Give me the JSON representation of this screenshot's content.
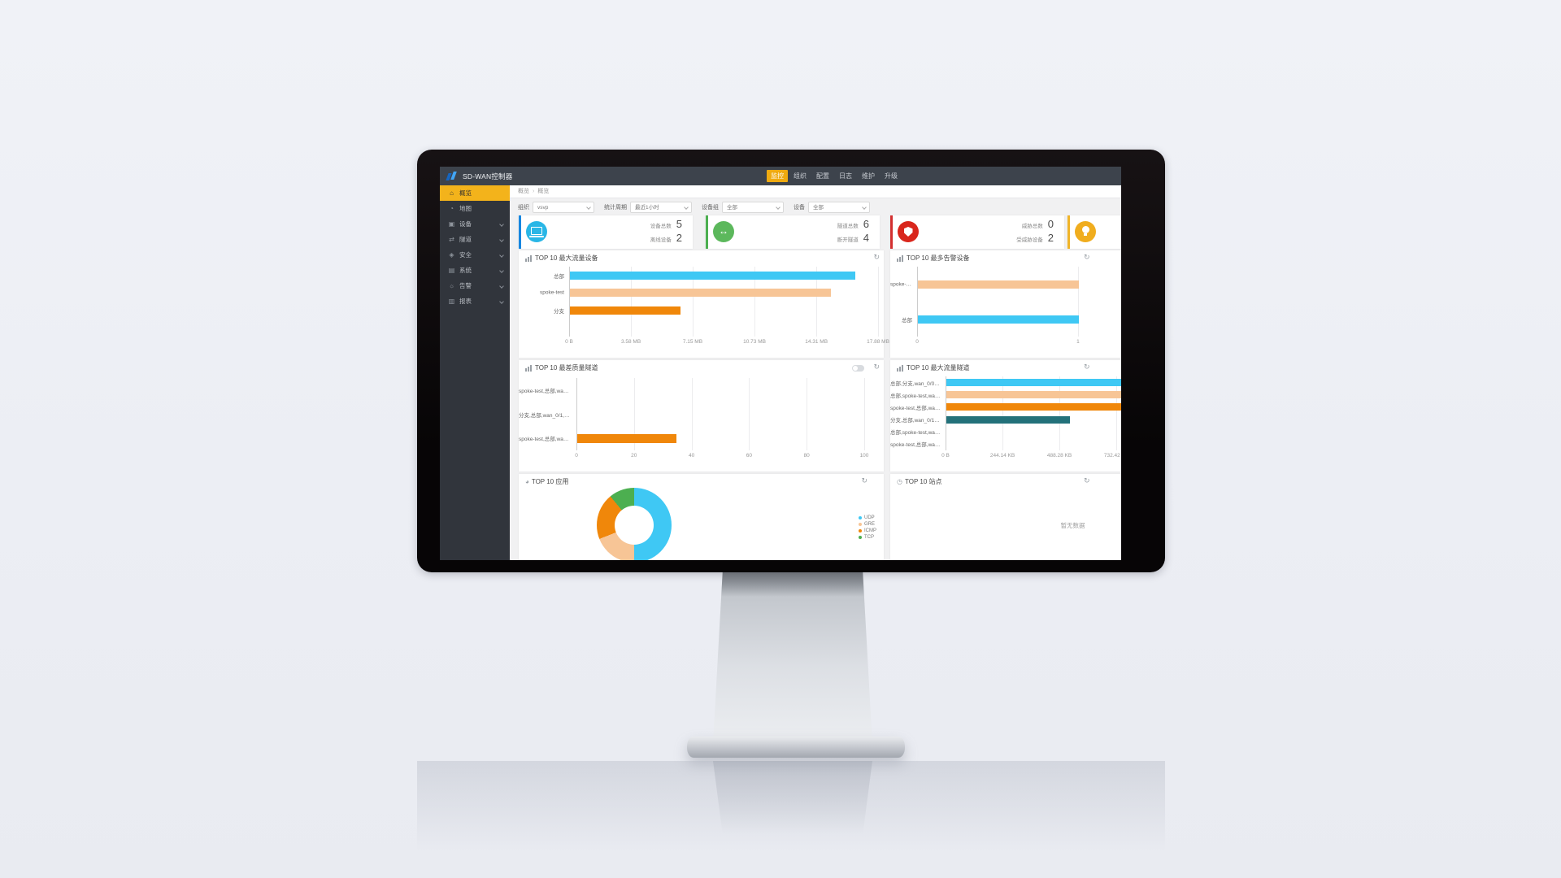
{
  "brand": {
    "title": "SD-WAN控制器"
  },
  "navbar": {
    "items": [
      {
        "name": "monitor",
        "label": "监控",
        "active": true
      },
      {
        "name": "organization",
        "label": "组织",
        "active": false
      },
      {
        "name": "config",
        "label": "配置",
        "active": false
      },
      {
        "name": "logs",
        "label": "日志",
        "active": false
      },
      {
        "name": "maintenance",
        "label": "维护",
        "active": false
      },
      {
        "name": "upgrade",
        "label": "升级",
        "active": false
      }
    ]
  },
  "sidebar": {
    "items": [
      {
        "name": "overview",
        "label": "概览",
        "icon": "dashboard-icon",
        "glyph": "⌂",
        "active": true,
        "expandable": false
      },
      {
        "name": "map",
        "label": "地图",
        "icon": "map-icon",
        "glyph": "◔",
        "active": false,
        "expandable": false
      },
      {
        "name": "devices",
        "label": "设备",
        "icon": "devices-icon",
        "glyph": "▣",
        "active": false,
        "expandable": true
      },
      {
        "name": "tunnels",
        "label": "隧道",
        "icon": "tunnel-icon",
        "glyph": "⇄",
        "active": false,
        "expandable": true
      },
      {
        "name": "security",
        "label": "安全",
        "icon": "shield-icon",
        "glyph": "◈",
        "active": false,
        "expandable": true
      },
      {
        "name": "system",
        "label": "系统",
        "icon": "system-icon",
        "glyph": "▤",
        "active": false,
        "expandable": true
      },
      {
        "name": "alarms",
        "label": "告警",
        "icon": "alarm-bulb-icon",
        "glyph": "☼",
        "active": false,
        "expandable": true
      },
      {
        "name": "reports",
        "label": "报表",
        "icon": "report-icon",
        "glyph": "▥",
        "active": false,
        "expandable": true
      }
    ]
  },
  "breadcrumb": {
    "items": [
      "概览",
      "概览"
    ],
    "separator": "›"
  },
  "filters": [
    {
      "name": "org",
      "label": "组织",
      "value": "vsvp"
    },
    {
      "name": "period",
      "label": "统计周期",
      "value": "最近1小时"
    },
    {
      "name": "device-group",
      "label": "设备组",
      "value": "全部"
    },
    {
      "name": "device",
      "label": "设备",
      "value": "全部"
    }
  ],
  "stat_cards": [
    {
      "name": "devices",
      "icon": "laptop-icon",
      "accent": "#1787e0",
      "circle": "#29b6e6",
      "rows": [
        {
          "label": "设备总数",
          "value": "5"
        },
        {
          "label": "离线设备",
          "value": "2"
        }
      ]
    },
    {
      "name": "tunnels",
      "icon": "tunnel-arrows-icon",
      "accent": "#4caf50",
      "circle": "#5cb85c",
      "rows": [
        {
          "label": "隧道总数",
          "value": "6"
        },
        {
          "label": "断开隧道",
          "value": "4"
        }
      ]
    },
    {
      "name": "threats",
      "icon": "threat-shield-icon",
      "accent": "#d32f2f",
      "circle": "#d9261c",
      "rows": [
        {
          "label": "威胁总数",
          "value": "0"
        },
        {
          "label": "受威胁设备",
          "value": "2"
        }
      ]
    },
    {
      "name": "alarms",
      "icon": "alarm-bulb-icon",
      "accent": "#f0b429",
      "circle": "#f0ad1e",
      "rows": []
    }
  ],
  "chart_data": [
    {
      "id": "chart1",
      "type": "bar",
      "orientation": "horizontal",
      "title": "TOP 10 最大流量设备",
      "header_icon": "bar-chart-icon",
      "unit": "MB",
      "categories": [
        "总部",
        "spoke-test",
        "分支"
      ],
      "values": [
        16.5,
        15.1,
        6.4
      ],
      "colors": [
        "#3fc8f4",
        "#f7c596",
        "#f0870a"
      ],
      "xlim": [
        0,
        17.88
      ],
      "grid": true,
      "ticks": [
        {
          "label": "0 B",
          "v": 0
        },
        {
          "label": "3.58 MB",
          "v": 3.58
        },
        {
          "label": "7.15 MB",
          "v": 7.15
        },
        {
          "label": "10.73 MB",
          "v": 10.73
        },
        {
          "label": "14.31 MB",
          "v": 14.31
        },
        {
          "label": "17.88 MB",
          "v": 17.88
        }
      ]
    },
    {
      "id": "chart2",
      "type": "bar",
      "orientation": "horizontal",
      "title": "TOP 10 最多告警设备",
      "header_icon": "bar-chart-icon",
      "unit": "count",
      "categories": [
        "spoke-test",
        "总部"
      ],
      "values": [
        1,
        1
      ],
      "colors": [
        "#f7c596",
        "#3fc8f4"
      ],
      "xlim": [
        0,
        1.92
      ],
      "grid": true,
      "ticks": [
        {
          "label": "0",
          "v": 0
        },
        {
          "label": "1",
          "v": 1
        }
      ]
    },
    {
      "id": "chart3",
      "type": "bar",
      "orientation": "horizontal",
      "title": "TOP 10 最差质量隧道",
      "header_icon": "bar-chart-icon",
      "has_toggle": true,
      "unit": "quality",
      "categories": [
        "spoke-test,总部,wan_0/…",
        "分支,总部,wan_0/1,wan_0/0",
        "spoke-test,总部,wan_0…"
      ],
      "values": [
        0,
        0,
        34.6
      ],
      "colors": [
        "#3fc8f4",
        "#f7c596",
        "#f0870a"
      ],
      "xlim": [
        0,
        100
      ],
      "grid": true,
      "ticks": [
        {
          "label": "0",
          "v": 0
        },
        {
          "label": "20",
          "v": 20
        },
        {
          "label": "40",
          "v": 40
        },
        {
          "label": "60",
          "v": 60
        },
        {
          "label": "80",
          "v": 80
        },
        {
          "label": "100",
          "v": 100
        }
      ]
    },
    {
      "id": "chart4",
      "type": "bar",
      "orientation": "horizontal",
      "title": "TOP 10 最大流量隧道",
      "header_icon": "bar-chart-icon",
      "unit": "KB",
      "categories": [
        "总部,分支,wan_0/0,wan_0/1",
        "总部,spoke-test,wan_0/…",
        "spoke-test,总部,wan_0…",
        "分支,总部,wan_0/1,wan_0/0",
        "总部,spoke-test,wan_0/…",
        "spoke-test,总部,wan_0/…"
      ],
      "values": [
        1300,
        1300,
        1300,
        530,
        0,
        0
      ],
      "colors": [
        "#3fc8f4",
        "#f7c596",
        "#f0870a",
        "#23717a",
        "#9e9e9e",
        "#9e9e9e"
      ],
      "xlim": [
        0,
        1325
      ],
      "grid": true,
      "ticks": [
        {
          "label": "0 B",
          "v": 0
        },
        {
          "label": "244.14 KB",
          "v": 244.14
        },
        {
          "label": "488.28 KB",
          "v": 488.28
        },
        {
          "label": "732.42 KB",
          "v": 732.42
        }
      ]
    },
    {
      "id": "chart5",
      "type": "pie",
      "title": "TOP 10 应用",
      "header_icon": "pie-chart-icon",
      "legend_position": "right",
      "segments": [
        {
          "label": "UDP",
          "value": 50,
          "color": "#3fc8f4"
        },
        {
          "label": "GRE",
          "value": 19,
          "color": "#f7c596"
        },
        {
          "label": "ICMP",
          "value": 20,
          "color": "#f0870a"
        },
        {
          "label": "TCP",
          "value": 11,
          "color": "#4caf50"
        }
      ]
    },
    {
      "id": "chart6",
      "type": "empty",
      "title": "TOP 10 站点",
      "header_icon": "clock-icon",
      "no_data_text": "暂无数据"
    }
  ]
}
